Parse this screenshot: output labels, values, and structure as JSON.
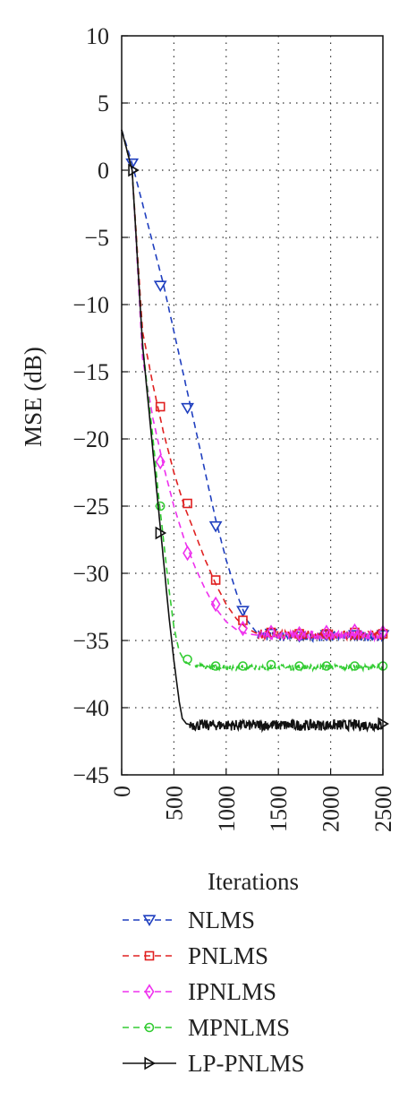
{
  "chart_data": {
    "type": "line",
    "title": "",
    "xlabel": "Iterations",
    "ylabel": "MSE (dB)",
    "xlim": [
      0,
      2500
    ],
    "ylim": [
      -45,
      10
    ],
    "xticks": [
      0,
      500,
      1000,
      1500,
      2000,
      2500
    ],
    "yticks": [
      10,
      5,
      0,
      -5,
      -10,
      -15,
      -20,
      -25,
      -30,
      -35,
      -40,
      -45
    ],
    "xtick_labels": [
      "0",
      "500",
      "1000",
      "1500",
      "2000",
      "2500"
    ],
    "ytick_labels": [
      "10",
      "5",
      "0",
      "−5",
      "−10",
      "−15",
      "−20",
      "−25",
      "−30",
      "−35",
      "−40",
      "−45"
    ],
    "grid": true,
    "legend_position": "below",
    "series": [
      {
        "name": "NLMS",
        "color": "#1f3fbf",
        "dash": "dashed",
        "marker": "triangle-down",
        "x": [
          0,
          100,
          200,
          300,
          400,
          500,
          600,
          700,
          800,
          900,
          1000,
          1100,
          1200,
          1300,
          1400,
          1500,
          2500
        ],
        "y": [
          3,
          0.5,
          -2.5,
          -5.5,
          -8.5,
          -12,
          -15.5,
          -19,
          -22.5,
          -26,
          -29,
          -31.5,
          -33.5,
          -34.5,
          -34.7,
          -34.7,
          -34.7
        ],
        "markers_x": [
          100,
          370,
          630,
          900,
          1160,
          1430,
          1700,
          1960,
          2230,
          2500
        ],
        "markers_y": [
          0.5,
          -8.6,
          -17.7,
          -26.5,
          -32.8,
          -34.5,
          -34.7,
          -34.6,
          -34.6,
          -34.6
        ],
        "noise": 0.35
      },
      {
        "name": "PNLMS",
        "color": "#e02020",
        "dash": "dashed",
        "marker": "square",
        "x": [
          0,
          100,
          200,
          300,
          400,
          500,
          600,
          700,
          800,
          900,
          1000,
          1100,
          1200,
          1300,
          1400,
          2500
        ],
        "y": [
          3,
          0,
          -12,
          -16,
          -19.5,
          -22.5,
          -25,
          -27,
          -29,
          -30.8,
          -32.3,
          -33.4,
          -34.1,
          -34.5,
          -34.6,
          -34.6
        ],
        "markers_x": [
          370,
          630,
          900,
          1160,
          1430,
          1700,
          1960,
          2230,
          2500
        ],
        "markers_y": [
          -17.6,
          -24.8,
          -30.5,
          -33.5,
          -34.4,
          -34.5,
          -34.5,
          -34.4,
          -34.5
        ],
        "noise": 0.35
      },
      {
        "name": "IPNLMS",
        "color": "#ee30ee",
        "dash": "dashed",
        "marker": "diamond",
        "x": [
          0,
          100,
          200,
          300,
          400,
          500,
          600,
          700,
          800,
          900,
          1000,
          1100,
          1200,
          1300,
          2500
        ],
        "y": [
          3,
          0,
          -14,
          -18.5,
          -22,
          -25,
          -27.5,
          -29.5,
          -31.2,
          -32.6,
          -33.6,
          -34.2,
          -34.5,
          -34.6,
          -34.6
        ],
        "markers_x": [
          370,
          630,
          900,
          1160,
          1430,
          1700,
          1960,
          2230,
          2500
        ],
        "markers_y": [
          -21.7,
          -28.5,
          -32.3,
          -34.1,
          -34.4,
          -34.5,
          -34.4,
          -34.3,
          -34.4
        ],
        "noise": 0.35
      },
      {
        "name": "MPNLMS",
        "color": "#33cc33",
        "dash": "dashed",
        "marker": "circle",
        "x": [
          0,
          100,
          200,
          300,
          350,
          400,
          450,
          500,
          550,
          600,
          650,
          700,
          800,
          2500
        ],
        "y": [
          3,
          0,
          -13,
          -20,
          -24,
          -27.5,
          -31,
          -34,
          -35.8,
          -36.5,
          -36.8,
          -36.9,
          -37,
          -37
        ],
        "markers_x": [
          370,
          630,
          900,
          1160,
          1430,
          1700,
          1960,
          2230,
          2500
        ],
        "markers_y": [
          -25,
          -36.4,
          -36.9,
          -36.9,
          -36.8,
          -36.9,
          -36.9,
          -36.9,
          -36.9
        ],
        "noise": 0.2
      },
      {
        "name": "LP-PNLMS",
        "color": "#111111",
        "dash": "solid",
        "marker": "triangle-right",
        "x": [
          0,
          100,
          200,
          300,
          350,
          400,
          450,
          500,
          550,
          580,
          620,
          700,
          2500
        ],
        "y": [
          3,
          0,
          -13,
          -21,
          -25,
          -29,
          -33,
          -36.5,
          -39.5,
          -40.8,
          -41.2,
          -41.3,
          -41.3
        ],
        "markers_x": [
          110,
          370,
          2500
        ],
        "markers_y": [
          0,
          -27,
          -41.2
        ],
        "noise": 0.4
      }
    ]
  }
}
